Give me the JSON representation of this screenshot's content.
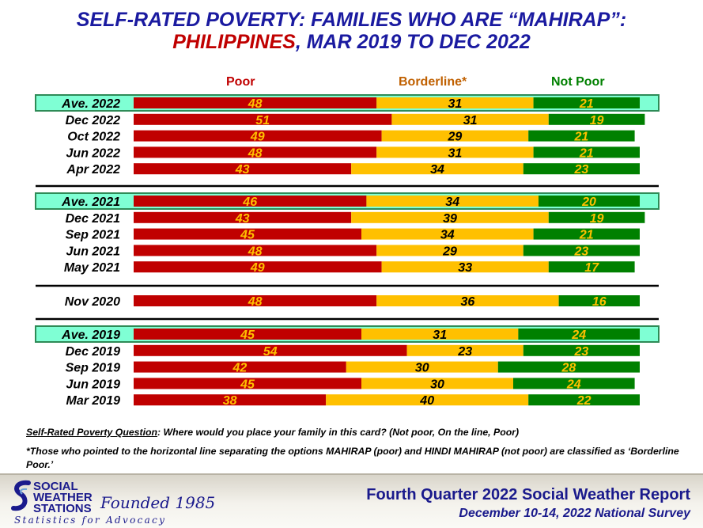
{
  "title": {
    "line1": "SELF-RATED POVERTY: FAMILIES WHO ARE “MAHIRAP”:",
    "line2_highlight": "PHILIPPINES",
    "line2_rest": ", MAR 2019 TO DEC 2022"
  },
  "colors": {
    "poor": "#c00000",
    "borderline": "#ffc000",
    "not_poor": "#008000",
    "poor_label": "#ffc000",
    "borderline_label": "#000000",
    "not_poor_label": "#ffc000",
    "highlight_fill": "#7fffd4",
    "highlight_border": "#2e8b57",
    "title_blue": "#1a1aa0",
    "title_red": "#c00000",
    "header_borderline": "#c06000"
  },
  "chart_data": {
    "type": "bar",
    "orientation": "horizontal",
    "stacked": true,
    "xlim": [
      0,
      100
    ],
    "series_names": [
      "Poor",
      "Borderline*",
      "Not Poor"
    ],
    "groups": [
      {
        "rows": [
          {
            "label": "Ave. 2022",
            "values": [
              48,
              31,
              21
            ],
            "highlight": true
          },
          {
            "label": "Dec 2022",
            "values": [
              51,
              31,
              19
            ]
          },
          {
            "label": "Oct 2022",
            "values": [
              49,
              29,
              21
            ]
          },
          {
            "label": "Jun 2022",
            "values": [
              48,
              31,
              21
            ]
          },
          {
            "label": "Apr 2022",
            "values": [
              43,
              34,
              23
            ]
          }
        ]
      },
      {
        "rows": [
          {
            "label": "Ave. 2021",
            "values": [
              46,
              34,
              20
            ],
            "highlight": true
          },
          {
            "label": "Dec 2021",
            "values": [
              43,
              39,
              19
            ]
          },
          {
            "label": "Sep 2021",
            "values": [
              45,
              34,
              21
            ]
          },
          {
            "label": "Jun 2021",
            "values": [
              48,
              29,
              23
            ]
          },
          {
            "label": "May 2021",
            "values": [
              49,
              33,
              17
            ]
          }
        ]
      },
      {
        "rows": [
          {
            "label": "Nov 2020",
            "values": [
              48,
              36,
              16
            ]
          }
        ]
      },
      {
        "rows": [
          {
            "label": "Ave. 2019",
            "values": [
              45,
              31,
              24
            ],
            "highlight": true
          },
          {
            "label": "Dec 2019",
            "values": [
              54,
              23,
              23
            ]
          },
          {
            "label": "Sep 2019",
            "values": [
              42,
              30,
              28
            ]
          },
          {
            "label": "Jun 2019",
            "values": [
              45,
              30,
              24
            ]
          },
          {
            "label": "Mar 2019",
            "values": [
              38,
              40,
              22
            ]
          }
        ]
      }
    ]
  },
  "footnotes": {
    "question_label": "Self-Rated Poverty Question",
    "question_text": ":  Where would you place your family in this card?  (Not poor, On the line, Poor)",
    "borderline_note": "*Those who pointed to the horizontal line separating the options MAHIRAP (poor) and HINDI MAHIRAP (not poor) are classified as ‘Borderline Poor.’"
  },
  "footer": {
    "org_line1": "SOCIAL",
    "org_line2": "WEATHER",
    "org_line3": "STATIONS",
    "founded": "Founded 1985",
    "tagline": "Statistics for Advocacy",
    "report_title": "Fourth Quarter 2022 Social Weather Report",
    "survey_dates": "December 10-14, 2022 National Survey"
  }
}
